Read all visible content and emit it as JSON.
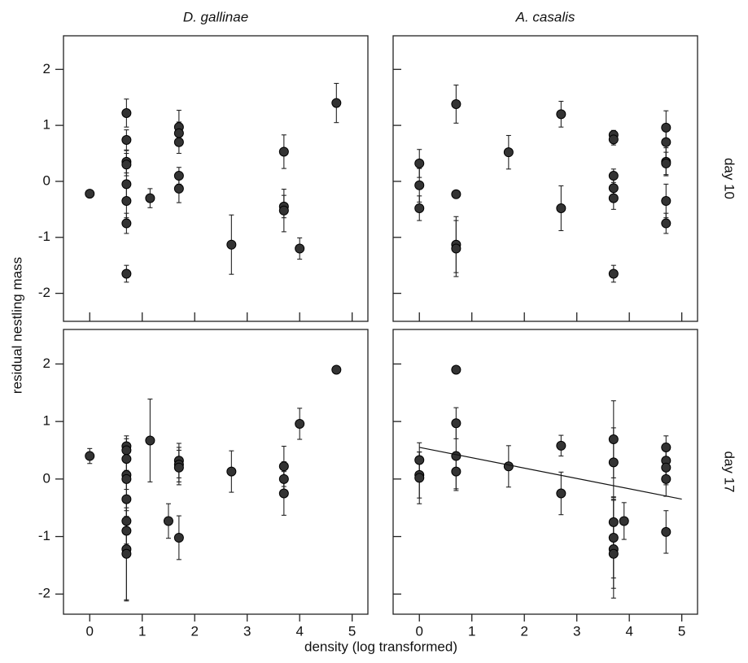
{
  "ylabel": "residual nestling mass",
  "xlabel": "density (log transformed)",
  "chart_data": [
    {
      "type": "scatter",
      "title": "D. gallinae",
      "color": "#333333",
      "xlim": [
        -0.5,
        5.3
      ],
      "ylim": [
        -2.5,
        2.6
      ],
      "xticks": [
        0,
        1,
        2,
        3,
        4,
        5
      ],
      "yticks": [
        -2,
        -1,
        0,
        1,
        2
      ],
      "x": [
        0,
        0.7,
        0.7,
        0.7,
        0.7,
        0.7,
        0.7,
        0.7,
        0.7,
        1.15,
        1.7,
        1.7,
        1.7,
        1.7,
        1.7,
        2.7,
        3.7,
        3.7,
        3.7,
        4.0,
        4.7
      ],
      "values": [
        -0.22,
        1.22,
        0.74,
        0.35,
        0.3,
        -0.05,
        -0.35,
        -0.75,
        -1.65,
        -0.3,
        0.97,
        0.86,
        0.7,
        0.1,
        -0.13,
        -1.13,
        0.53,
        -0.45,
        -0.52,
        -1.2,
        1.4
      ],
      "errors": [
        0,
        0.25,
        0.18,
        0.2,
        0.2,
        0.3,
        0.3,
        0.18,
        0.15,
        0.17,
        0.3,
        0.2,
        0.2,
        0.15,
        0.25,
        0.53,
        0.3,
        0.2,
        0.38,
        0.19,
        0.35
      ]
    },
    {
      "type": "scatter",
      "title": "A. casalis",
      "row_label": "day 10",
      "color": "#333333",
      "xlim": [
        -0.5,
        5.3
      ],
      "ylim": [
        -2.5,
        2.6
      ],
      "xticks": [
        0,
        1,
        2,
        3,
        4,
        5
      ],
      "yticks": [
        -2,
        -1,
        0,
        1,
        2
      ],
      "x": [
        0,
        0,
        0,
        0.7,
        0.7,
        0.7,
        0.7,
        1.7,
        2.7,
        2.7,
        3.7,
        3.7,
        3.7,
        3.7,
        3.7,
        3.7,
        4.7,
        4.7,
        4.7,
        4.7,
        4.7,
        4.7
      ],
      "values": [
        0.32,
        -0.07,
        -0.48,
        1.38,
        -0.23,
        -1.13,
        -1.2,
        0.52,
        1.2,
        -0.48,
        0.83,
        0.75,
        0.1,
        -0.12,
        -0.3,
        -1.65,
        0.96,
        0.7,
        0.35,
        0.32,
        -0.35,
        -0.75
      ],
      "errors": [
        0.25,
        0.3,
        0.22,
        0.34,
        0,
        0.5,
        0.5,
        0.3,
        0.23,
        0.4,
        0.08,
        0.1,
        0.12,
        0.2,
        0.2,
        0.15,
        0.3,
        0.3,
        0.25,
        0.2,
        0.3,
        0.18
      ]
    },
    {
      "type": "scatter",
      "color": "#333333",
      "xlim": [
        -0.5,
        5.3
      ],
      "ylim": [
        -2.35,
        2.6
      ],
      "xticks": [
        0,
        1,
        2,
        3,
        4,
        5
      ],
      "yticks": [
        -2,
        -1,
        0,
        1,
        2
      ],
      "x": [
        0,
        0.7,
        0.7,
        0.7,
        0.7,
        0.7,
        0.7,
        0.7,
        0.7,
        0.7,
        0.7,
        1.15,
        1.5,
        1.7,
        1.7,
        1.7,
        1.7,
        2.7,
        3.7,
        3.7,
        3.7,
        4.0,
        4.7
      ],
      "values": [
        0.4,
        0.57,
        0.5,
        0.35,
        0.07,
        0,
        -0.35,
        -0.73,
        -0.9,
        -1.22,
        -1.3,
        0.67,
        -0.73,
        0.32,
        0.25,
        0.2,
        -1.02,
        0.13,
        0.22,
        0,
        -0.25,
        0.96,
        1.9
      ],
      "errors": [
        0.13,
        0.18,
        0.2,
        0.2,
        0.25,
        0.3,
        0.3,
        0.4,
        0.35,
        0.9,
        0.8,
        0.72,
        0.3,
        0.3,
        0.3,
        0.3,
        0.38,
        0.36,
        0.35,
        0.3,
        0.38,
        0.27,
        0
      ]
    },
    {
      "type": "scatter",
      "row_label": "day 17",
      "color": "#333333",
      "xlim": [
        -0.5,
        5.3
      ],
      "ylim": [
        -2.35,
        2.6
      ],
      "xticks": [
        0,
        1,
        2,
        3,
        4,
        5
      ],
      "yticks": [
        -2,
        -1,
        0,
        1,
        2
      ],
      "x": [
        0,
        0,
        0,
        0.7,
        0.7,
        0.7,
        0.7,
        1.7,
        2.7,
        2.7,
        3.7,
        3.7,
        3.7,
        3.7,
        3.7,
        3.7,
        3.9,
        4.7,
        4.7,
        4.7,
        4.7,
        4.7
      ],
      "values": [
        0.33,
        0.07,
        0.02,
        1.9,
        0.97,
        0.4,
        0.13,
        0.22,
        0.58,
        -0.25,
        0.69,
        0.29,
        -0.75,
        -1.02,
        -1.22,
        -1.3,
        -0.73,
        0.55,
        0.32,
        0.2,
        0,
        -0.92
      ],
      "errors": [
        0.3,
        0.4,
        0.45,
        0,
        0.27,
        0.6,
        0.3,
        0.36,
        0.18,
        0.37,
        0.67,
        0.6,
        0.4,
        0.7,
        0.85,
        0.6,
        0.32,
        0.2,
        0.3,
        0.3,
        0.3,
        0.37
      ],
      "fit": {
        "x": [
          0,
          5
        ],
        "values": [
          0.55,
          -0.35
        ]
      }
    }
  ]
}
